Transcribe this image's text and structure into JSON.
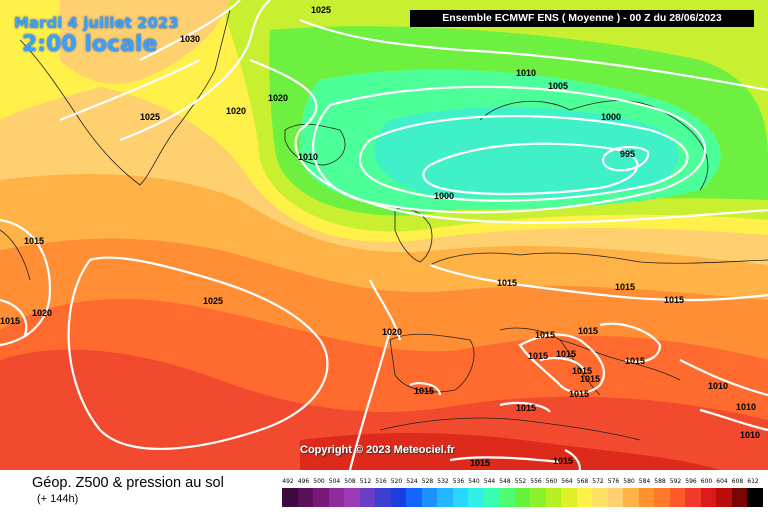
{
  "header": {
    "date": "Mardi 4 juillet 2023",
    "time": "2:00 locale",
    "title": "Ensemble ECMWF ENS  ( Moyenne )  -  00 Z du 28/06/2023"
  },
  "copyright": "Copyright © 2023 Meteociel.fr",
  "footer": {
    "label": "Géop. Z500 & pression au sol",
    "sublabel": "(+ 144h)"
  },
  "isobar_labels": [
    "1025",
    "1030",
    "1020",
    "1025",
    "1020",
    "1010",
    "1005",
    "1000",
    "1010",
    "995",
    "1000",
    "1015",
    "1015",
    "1020",
    "1025",
    "1020",
    "1015",
    "1015",
    "1015",
    "1015",
    "1015",
    "1015",
    "1015",
    "1015",
    "1015",
    "1015",
    "1015",
    "1015",
    "1015",
    "1015",
    "1010",
    "1010",
    "1010",
    "1015"
  ],
  "scale": {
    "values": [
      "492",
      "496",
      "500",
      "504",
      "508",
      "512",
      "516",
      "520",
      "524",
      "528",
      "532",
      "536",
      "540",
      "544",
      "548",
      "552",
      "556",
      "560",
      "564",
      "568",
      "572",
      "576",
      "580",
      "584",
      "588",
      "592",
      "596",
      "600",
      "604",
      "608",
      "612"
    ],
    "colors": [
      "#3d0a3d",
      "#5a0f5a",
      "#7a197a",
      "#8e2a9c",
      "#9c3bb5",
      "#6a3fc6",
      "#3b3fd2",
      "#1a3ee0",
      "#1266ff",
      "#1b92ff",
      "#22b7ff",
      "#28d6ff",
      "#2ff0e6",
      "#38ffb0",
      "#4dff70",
      "#66f23c",
      "#8cf02a",
      "#b7f025",
      "#ddf126",
      "#fff04a",
      "#ffe168",
      "#ffd070",
      "#ffb346",
      "#ff942e",
      "#ff7a2a",
      "#ff5a2a",
      "#f23a2a",
      "#dd1a1a",
      "#b80e0e",
      "#7a0404",
      "#000000"
    ]
  }
}
